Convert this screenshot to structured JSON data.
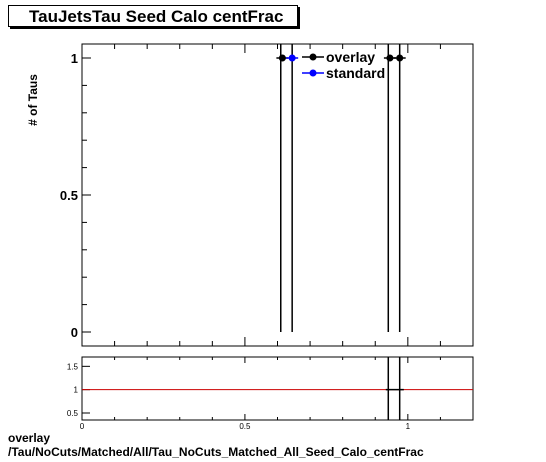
{
  "title": "TauJetsTau Seed Calo centFrac",
  "footer": {
    "line1": "overlay",
    "line2": "/Tau/NoCuts/Matched/All/Tau_NoCuts_Matched_All_Seed_Calo_centFrac"
  },
  "colors": {
    "overlay": "#000000",
    "standard": "#0000ff",
    "ratio_line": "#cc0000"
  },
  "chart_data": [
    {
      "type": "scatter",
      "ylabel": "# of Taus",
      "xlim": [
        0,
        1.2
      ],
      "ylim": [
        0,
        1
      ],
      "y_ticks": [
        "0",
        "0.5",
        "1"
      ],
      "legend": {
        "position": "top-center",
        "entries": [
          "overlay",
          "standard"
        ]
      },
      "series": [
        {
          "name": "overlay",
          "points": [
            [
              0.615,
              1
            ],
            [
              0.945,
              1
            ],
            [
              0.975,
              1
            ]
          ]
        },
        {
          "name": "standard",
          "points": [
            [
              0.645,
              1
            ]
          ]
        }
      ],
      "vertical_lines": [
        0.61,
        0.645,
        0.94,
        0.975
      ]
    },
    {
      "type": "line",
      "xlim": [
        0,
        1.2
      ],
      "ylim": [
        0.35,
        1.7
      ],
      "x_ticks": [
        "0",
        "0.5",
        "1"
      ],
      "y_ticks": [
        "0.5",
        "1",
        "1.5"
      ],
      "reference_line": 1,
      "points": [
        [
          0.96,
          1
        ]
      ],
      "vertical_lines": [
        0.94,
        0.975
      ]
    }
  ]
}
